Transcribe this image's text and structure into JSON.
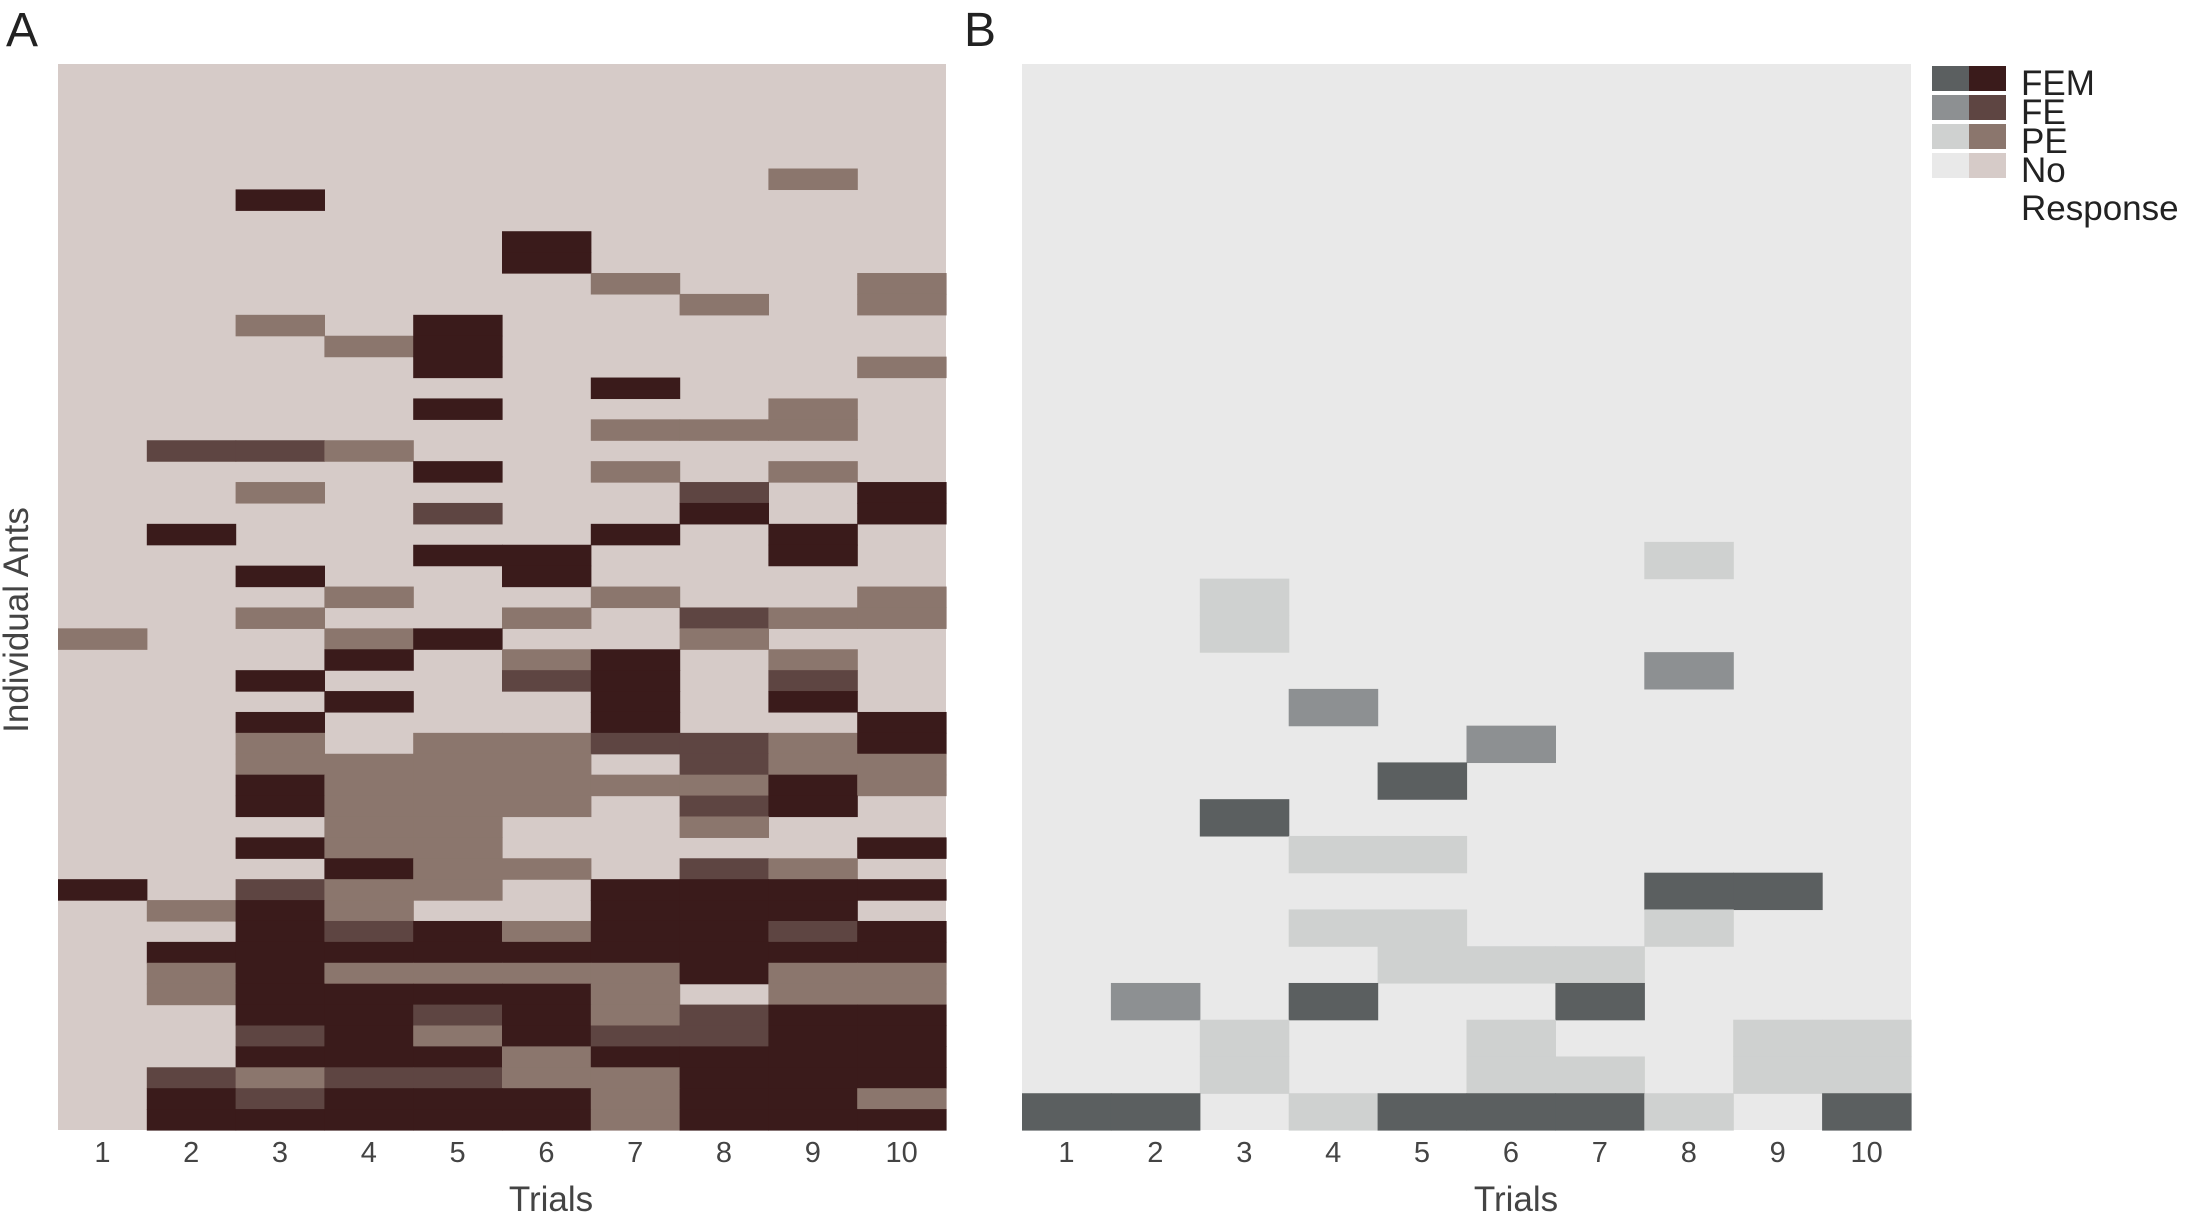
{
  "chart_data": [
    {
      "type": "heatmap",
      "panel_label": "A",
      "xlabel": "Trials",
      "ylabel": "Individual Ants",
      "x_categories": [
        "1",
        "2",
        "3",
        "4",
        "5",
        "6",
        "7",
        "8",
        "9",
        "10"
      ],
      "n_rows": 51,
      "legend_categories": [
        "FEM",
        "FE",
        "PE",
        "No Response"
      ],
      "colors": {
        "FEM": "#3a1b1b",
        "FE": "#5e4542",
        "PE": "#8b766d",
        "No Response": "#d6cbc8"
      },
      "rows": [
        "..........",
        "..........",
        "..........",
        "..........",
        "..........",
        "........P.",
        "..M.......",
        "..........",
        ".....M....",
        ".....M....",
        "......P..P",
        ".......P.P",
        "..P.M.....",
        "...PM.....",
        "....M....P",
        "......M...",
        "....M...P.",
        "......PPP.",
        ".EEP......",
        "....M.P.P.",
        "..P....E.M",
        "....E..M.M",
        ".M....M.M.",
        "....MM..M.",
        "..M..M....",
        "...P..P..P",
        "..P..P.EPP",
        "P..PM..P..",
        "...M.PM.P.",
        "..M..EM.E.",
        "...M..M.M.",
        "..M...M..M",
        "..P.PPEEPM",
        "..PPPP.EPP",
        "..MPPPPPMP",
        "..MPPP.EM.",
        "...PP..P..",
        "..MPP....M",
        "...MPP.EP.",
        "M.EPP.MMMM",
        ".PMP..MMM.",
        "..MEMPMMEM",
        ".MMMMMMMMM",
        ".PMPPPPMPP",
        ".PMMMMP.PP",
        "..MMEMPEMM",
        "..EMPMEEMM",
        "..MMMPMMMM",
        ".EPEEPPMMM",
        ".MEMMMPMMP",
        ".MMMMMPMMM"
      ]
    },
    {
      "type": "heatmap",
      "panel_label": "B",
      "xlabel": "Trials",
      "ylabel": "",
      "x_categories": [
        "1",
        "2",
        "3",
        "4",
        "5",
        "6",
        "7",
        "8",
        "9",
        "10"
      ],
      "n_rows": 29,
      "legend_categories": [
        "FEM",
        "FE",
        "PE",
        "No Response"
      ],
      "colors": {
        "FEM": "#5b5f60",
        "FE": "#8d9092",
        "PE": "#cfd1d0",
        "No Response": "#e9e9e9"
      },
      "rows": [
        "..........",
        "..........",
        "..........",
        "..........",
        "..........",
        "..........",
        "..........",
        "..........",
        "..........",
        "..........",
        "..........",
        "..........",
        "..........",
        ".......P..",
        "..P.......",
        "..P.......",
        ".......E..",
        "...E......",
        ".....E....",
        "....M.....",
        "..M.......",
        "...PP.....",
        ".......MM.",
        "...PP..P..",
        "....PPP...",
        ".E.M..M...",
        "..P..P..PP",
        "..P..PP.PP",
        "MM.PMMMP.M"
      ]
    }
  ]
}
